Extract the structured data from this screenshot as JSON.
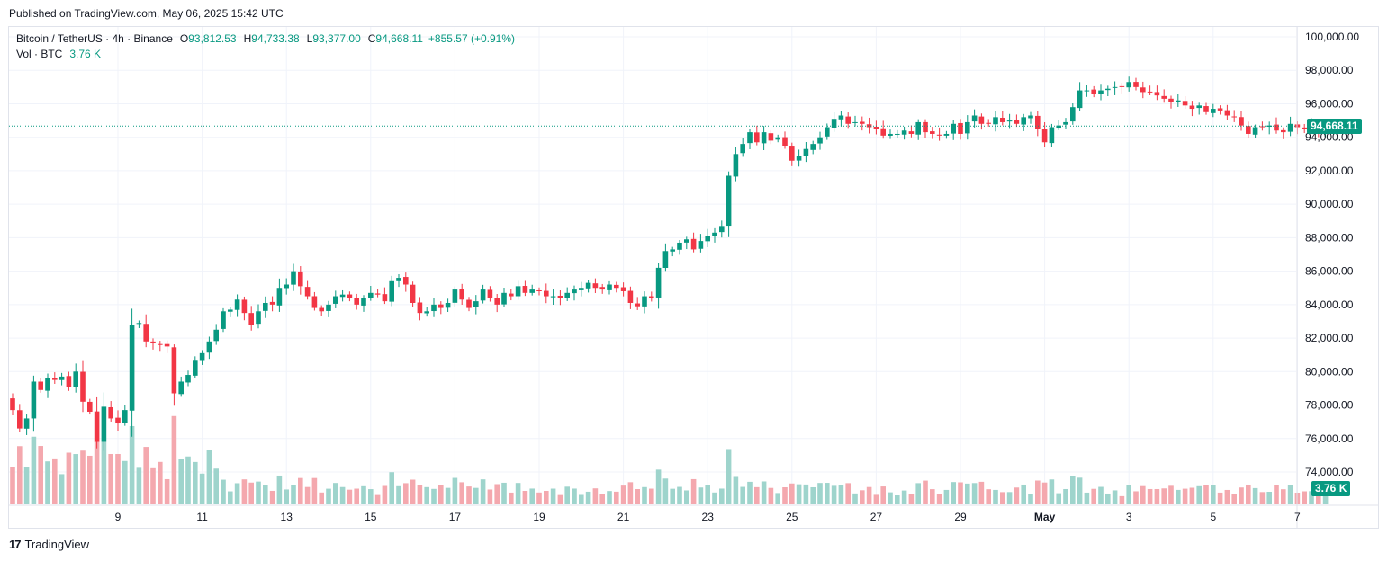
{
  "published": "Published on TradingView.com, May 06, 2025 15:42 UTC",
  "legend": {
    "symbol": "Bitcoin / TetherUS · 4h · Binance",
    "o_label": "O",
    "o": "93,812.53",
    "h_label": "H",
    "h": "94,733.38",
    "l_label": "L",
    "l": "93,377.00",
    "c_label": "C",
    "c": "94,668.11",
    "change": "+855.57 (+0.91%)",
    "vol_label": "Vol · BTC",
    "vol": "3.76 K"
  },
  "last_price_label": "94,668.11",
  "last_volume_label": "3.76 K",
  "footer": "TradingView",
  "colors": {
    "up": "#089981",
    "down": "#f23645",
    "up_vol": "#9ed4cc",
    "down_vol": "#f4a8ae",
    "grid": "#f0f3fa",
    "text": "#131722"
  },
  "chart_data": {
    "type": "candlestick",
    "symbol": "BTCUSDT",
    "timeframe": "4h",
    "y_ticks": [
      "74,000.00",
      "76,000.00",
      "78,000.00",
      "80,000.00",
      "82,000.00",
      "84,000.00",
      "86,000.00",
      "88,000.00",
      "90,000.00",
      "92,000.00",
      "94,000.00",
      "96,000.00",
      "98,000.00",
      "100,000.00"
    ],
    "y_tick_values": [
      74000,
      76000,
      78000,
      80000,
      82000,
      84000,
      86000,
      88000,
      90000,
      92000,
      94000,
      96000,
      98000,
      100000
    ],
    "x_ticks": [
      "9",
      "11",
      "13",
      "15",
      "17",
      "19",
      "21",
      "23",
      "25",
      "27",
      "29",
      "May",
      "3",
      "5",
      "7"
    ],
    "x_tick_index": [
      15,
      27,
      39,
      51,
      63,
      75,
      87,
      99,
      111,
      123,
      135,
      147,
      159,
      171,
      183
    ],
    "last_close": 94668.11,
    "close_series": [
      77700,
      76600,
      77200,
      79400,
      78900,
      79600,
      79500,
      79700,
      79100,
      80000,
      78200,
      77600,
      75800,
      77900,
      77200,
      76900,
      77700,
      82800,
      82900,
      81800,
      81700,
      81600,
      81500,
      78700,
      79400,
      79800,
      80700,
      81100,
      81800,
      82500,
      83600,
      83700,
      84300,
      83500,
      82800,
      83600,
      84100,
      84000,
      85000,
      85200,
      86000,
      85100,
      84500,
      83800,
      83600,
      84000,
      84500,
      84600,
      84400,
      84000,
      84400,
      84700,
      84600,
      84200,
      85400,
      85600,
      85200,
      84100,
      83500,
      83600,
      84000,
      83800,
      84100,
      84900,
      84300,
      83800,
      84200,
      84900,
      84400,
      84000,
      84700,
      84500,
      85100,
      84700,
      84900,
      84800,
      84500,
      84500,
      84400,
      84700,
      84900,
      85000,
      85300,
      85000,
      84900,
      85200,
      85000,
      84800,
      84100,
      83900,
      84500,
      84400,
      86200,
      87200,
      87300,
      87700,
      87900,
      87300,
      87800,
      88100,
      88300,
      88700,
      91700,
      93000,
      93600,
      94300,
      93700,
      94300,
      93800,
      94000,
      93500,
      92600,
      92900,
      93300,
      93600,
      94000,
      94600,
      95100,
      95300,
      94800,
      94900,
      94800,
      94600,
      94500,
      94100,
      94200,
      94200,
      94400,
      94200,
      94900,
      94300,
      94200,
      94100,
      94200,
      94800,
      94200,
      94900,
      95300,
      94800,
      94800,
      95200,
      94900,
      95000,
      94800,
      95200,
      95300,
      94500,
      93700,
      94600,
      94700,
      94900,
      95800,
      96800,
      96800,
      96600,
      96800,
      96900,
      97000,
      97000,
      97300,
      97000,
      96700,
      96700,
      96500,
      96300,
      96100,
      96200,
      95900,
      95700,
      95900,
      95500,
      95700,
      95600,
      95300,
      95200,
      94700,
      94200,
      94600,
      94600,
      94700,
      94400,
      94300,
      94800,
      94600,
      94500,
      94700,
      94200,
      94668
    ]
  }
}
